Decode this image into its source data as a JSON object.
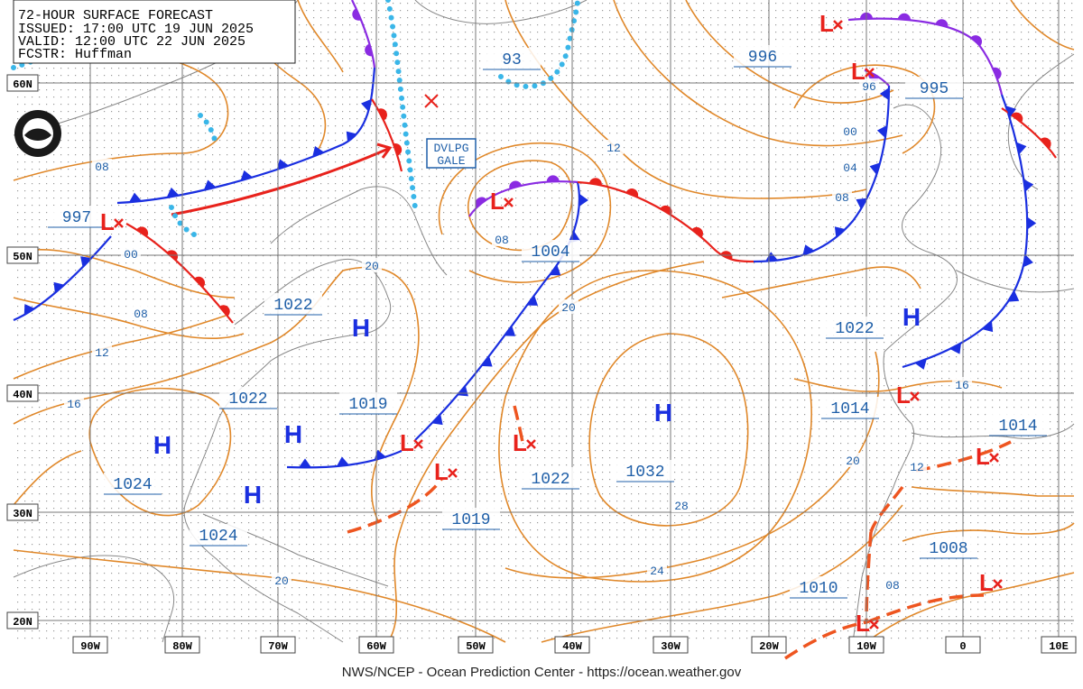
{
  "header": {
    "title": "72-HOUR SURFACE FORECAST",
    "issued": "ISSUED: 17:00 UTC 19 JUN 2025",
    "valid": "VALID: 12:00 UTC 22 JUN 2025",
    "forecaster": "FCSTR: Huffman"
  },
  "latitude_labels": [
    "60N",
    "50N",
    "40N",
    "30N",
    "20N"
  ],
  "longitude_labels": [
    "90W",
    "80W",
    "70W",
    "60W",
    "50W",
    "40W",
    "30W",
    "20W",
    "10W",
    "0",
    "10E"
  ],
  "pressure_labels": [
    "997",
    "1022",
    "1022",
    "1019",
    "1024",
    "1024",
    "1019",
    "1022",
    "1004",
    "1032",
    "996",
    "995",
    "1022",
    "1014",
    "1014",
    "1008",
    "1010",
    "93"
  ],
  "isobar_labels": [
    "08",
    "00",
    "08",
    "12",
    "16",
    "20",
    "08",
    "12",
    "20",
    "28",
    "24",
    "20",
    "96",
    "00",
    "04",
    "08",
    "16",
    "20",
    "12",
    "08"
  ],
  "highs": [
    "H",
    "H",
    "H",
    "H",
    "H",
    "H"
  ],
  "lows": [
    "L",
    "L",
    "L",
    "L",
    "L",
    "L",
    "L",
    "L",
    "L",
    "L",
    "L"
  ],
  "annotation": [
    "DVLPG",
    "GALE"
  ],
  "footer": "NWS/NCEP - Ocean Prediction Center - https://ocean.weather.gov"
}
